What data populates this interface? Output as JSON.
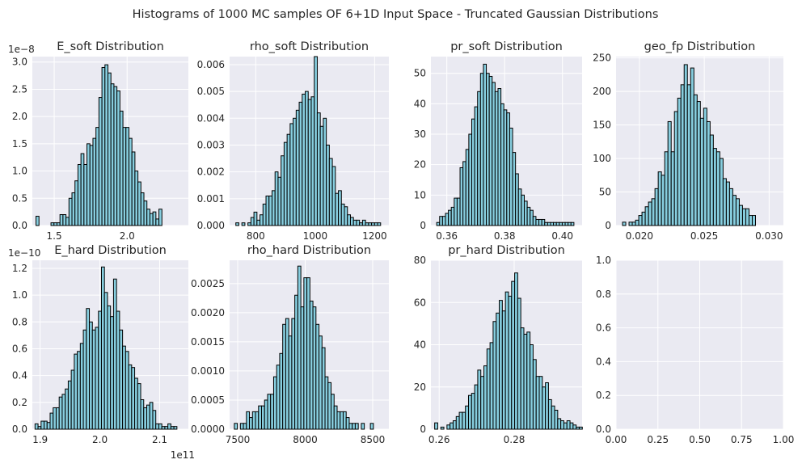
{
  "figure": {
    "title": "Histograms of 1000 MC samples OF 6+1D Input Space - Truncated Gaussian Distributions",
    "style": {
      "axes_bg": "#eaeaf2",
      "grid": "#ffffff",
      "bar_fill": "#87cedf",
      "bar_edge": "#000000",
      "text": "#262626"
    }
  },
  "chart_data": [
    {
      "type": "bar",
      "title": "E_soft Distribution",
      "x_offset_label": "",
      "y_offset_label": "1e−8",
      "xlim": [
        1.35,
        2.42
      ],
      "ylim": [
        0,
        3.1
      ],
      "xticks": [
        1.5,
        2.0
      ],
      "xtick_labels": [
        "1.5",
        "2.0"
      ],
      "yticks": [
        0.0,
        0.5,
        1.0,
        1.5,
        2.0,
        2.5,
        3.0
      ],
      "ytick_labels": [
        "0.0",
        "0.5",
        "1.0",
        "1.5",
        "2.0",
        "2.5",
        "3.0"
      ],
      "bin_start": 1.375,
      "bin_width": 0.02056,
      "values": [
        0.17,
        0,
        0,
        0,
        0,
        0.05,
        0.05,
        0.05,
        0.2,
        0.2,
        0.15,
        0.5,
        0.6,
        0.82,
        1.12,
        1.32,
        1.12,
        1.5,
        1.47,
        1.6,
        1.8,
        2.35,
        2.9,
        2.95,
        2.8,
        2.6,
        2.55,
        2.47,
        2.1,
        1.8,
        1.8,
        1.6,
        1.35,
        1.0,
        0.8,
        0.6,
        0.45,
        0.3,
        0.22,
        0.25,
        0.12,
        0.3
      ]
    },
    {
      "type": "bar",
      "title": "rho_soft Distribution",
      "x_offset_label": "",
      "y_offset_label": "",
      "xlim": [
        712,
        1248
      ],
      "ylim": [
        0,
        0.0063
      ],
      "xticks": [
        800,
        1000,
        1200
      ],
      "xtick_labels": [
        "800",
        "1000",
        "1200"
      ],
      "yticks": [
        0,
        0.001,
        0.002,
        0.003,
        0.004,
        0.005,
        0.006
      ],
      "ytick_labels": [
        "0.000",
        "0.001",
        "0.002",
        "0.003",
        "0.004",
        "0.005",
        "0.006"
      ],
      "bin_start": 733,
      "bin_width": 10.15,
      "values": [
        0.0001,
        0,
        0.0001,
        0,
        0.0001,
        0.0003,
        0.0005,
        0.0002,
        0.0004,
        0.0008,
        0.0011,
        0.0011,
        0.0013,
        0.002,
        0.0018,
        0.0026,
        0.0031,
        0.0034,
        0.0038,
        0.004,
        0.0043,
        0.0046,
        0.0049,
        0.005,
        0.0047,
        0.0048,
        0.0063,
        0.0042,
        0.0037,
        0.004,
        0.003,
        0.0025,
        0.0022,
        0.0012,
        0.0013,
        0.0008,
        0.0007,
        0.0004,
        0.0003,
        0.0002,
        0.0002,
        0.0001,
        0.0002,
        0.0001,
        0.0001,
        0.0001,
        0.0001,
        0.0001
      ]
    },
    {
      "type": "bar",
      "title": "pr_soft Distribution",
      "x_offset_label": "",
      "y_offset_label": "",
      "xlim": [
        0.3545,
        0.4068
      ],
      "ylim": [
        0,
        55.5
      ],
      "xticks": [
        0.36,
        0.38,
        0.4
      ],
      "xtick_labels": [
        "0.36",
        "0.38",
        "0.40"
      ],
      "yticks": [
        0,
        10,
        20,
        30,
        40,
        50
      ],
      "ytick_labels": [
        "0",
        "10",
        "20",
        "30",
        "40",
        "50"
      ],
      "bin_start": 0.3565,
      "bin_width": 0.00101,
      "values": [
        1,
        3,
        3,
        4,
        5,
        6,
        9,
        9,
        19,
        21,
        25,
        30,
        35,
        39,
        44,
        50,
        53,
        50,
        49,
        47,
        44,
        45,
        40,
        38,
        37,
        32,
        24,
        17,
        12,
        10,
        8,
        6,
        5,
        3,
        2,
        2,
        2,
        1,
        1,
        1,
        1,
        1,
        1,
        1,
        1,
        1,
        1
      ]
    },
    {
      "type": "bar",
      "title": "geo_fp Distribution",
      "x_offset_label": "",
      "y_offset_label": "",
      "xlim": [
        0.0182,
        0.0311
      ],
      "ylim": [
        0,
        252
      ],
      "xticks": [
        0.02,
        0.025,
        0.03
      ],
      "xtick_labels": [
        "0.020",
        "0.025",
        "0.030"
      ],
      "yticks": [
        0,
        50,
        100,
        150,
        200,
        250
      ],
      "ytick_labels": [
        "0",
        "50",
        "100",
        "150",
        "200",
        "250"
      ],
      "bin_start": 0.0187,
      "bin_width": 0.00025,
      "values": [
        5,
        0,
        5,
        5,
        8,
        15,
        20,
        28,
        35,
        40,
        55,
        80,
        75,
        110,
        155,
        110,
        170,
        190,
        210,
        240,
        210,
        235,
        195,
        185,
        160,
        175,
        155,
        135,
        115,
        110,
        100,
        70,
        65,
        55,
        45,
        40,
        30,
        25,
        25,
        15,
        15
      ]
    },
    {
      "type": "bar",
      "title": "E_hard Distribution",
      "x_offset_label": "1e11",
      "y_offset_label": "1e−10",
      "xlim": [
        1.887,
        2.148
      ],
      "ylim": [
        0,
        1.26
      ],
      "xticks": [
        1.9,
        2.0,
        2.1
      ],
      "xtick_labels": [
        "1.9",
        "2.0",
        "2.1"
      ],
      "yticks": [
        0,
        0.2,
        0.4,
        0.6,
        0.8,
        1.0,
        1.2
      ],
      "ytick_labels": [
        "0.0",
        "0.2",
        "0.4",
        "0.6",
        "0.8",
        "1.0",
        "1.2"
      ],
      "bin_start": 1.8915,
      "bin_width": 0.00505,
      "values": [
        0.04,
        0.02,
        0.06,
        0.06,
        0.05,
        0.12,
        0.16,
        0.16,
        0.24,
        0.26,
        0.3,
        0.36,
        0.44,
        0.56,
        0.58,
        0.64,
        0.74,
        0.9,
        0.8,
        0.74,
        0.76,
        0.88,
        1.21,
        1.02,
        0.92,
        0.84,
        1.12,
        0.88,
        0.74,
        0.62,
        0.58,
        0.48,
        0.46,
        0.38,
        0.34,
        0.22,
        0.16,
        0.18,
        0.2,
        0.14,
        0.04,
        0.04,
        0.02,
        0.02,
        0.04,
        0.02,
        0.02
      ]
    },
    {
      "type": "bar",
      "title": "rho_hard Distribution",
      "x_offset_label": "",
      "y_offset_label": "",
      "xlim": [
        7440,
        8620
      ],
      "ylim": [
        0,
        0.0029
      ],
      "xticks": [
        7500,
        8000,
        8500
      ],
      "xtick_labels": [
        "7500",
        "8000",
        "8500"
      ],
      "yticks": [
        0,
        0.0005,
        0.001,
        0.0015,
        0.002,
        0.0025
      ],
      "ytick_labels": [
        "0.0000",
        "0.0005",
        "0.0010",
        "0.0015",
        "0.0020",
        "0.0025"
      ],
      "bin_start": 7475,
      "bin_width": 22.4,
      "values": [
        0.0001,
        0,
        0.0001,
        0.0001,
        0.0003,
        0.0002,
        0.0003,
        0.0003,
        0.0004,
        0.0004,
        0.0005,
        0.0006,
        0.0006,
        0.0009,
        0.0011,
        0.0013,
        0.0018,
        0.0019,
        0.0016,
        0.0019,
        0.0023,
        0.0028,
        0.0021,
        0.0026,
        0.0026,
        0.0022,
        0.0021,
        0.0018,
        0.0016,
        0.0014,
        0.0009,
        0.0008,
        0.0006,
        0.0004,
        0.0003,
        0.0003,
        0.0003,
        0.0002,
        0.0001,
        0.0001,
        0.0001,
        0,
        0.0001,
        0,
        0,
        0.0001
      ]
    },
    {
      "type": "bar",
      "title": "pr_hard Distribution",
      "x_offset_label": "",
      "y_offset_label": "",
      "xlim": [
        0.2578,
        0.2981
      ],
      "ylim": [
        0,
        80
      ],
      "xticks": [
        0.26,
        0.28
      ],
      "xtick_labels": [
        "0.26",
        "0.28"
      ],
      "yticks": [
        0,
        20,
        40,
        60,
        80
      ],
      "ytick_labels": [
        "0",
        "20",
        "40",
        "60",
        "80"
      ],
      "bin_start": 0.2588,
      "bin_width": 0.00082,
      "values": [
        3,
        0,
        1,
        0,
        2,
        3,
        4,
        6,
        8,
        8,
        11,
        16,
        17,
        21,
        28,
        25,
        30,
        38,
        41,
        51,
        55,
        61,
        56,
        65,
        63,
        70,
        74,
        62,
        48,
        45,
        46,
        40,
        33,
        25,
        25,
        20,
        22,
        14,
        11,
        9,
        5,
        4,
        3,
        4,
        3,
        2,
        1,
        1
      ]
    },
    {
      "type": "bar",
      "title": "",
      "x_offset_label": "",
      "y_offset_label": "",
      "xlim": [
        0,
        1
      ],
      "ylim": [
        0,
        1
      ],
      "xticks": [
        0,
        0.25,
        0.5,
        0.75,
        1.0
      ],
      "xtick_labels": [
        "0.00",
        "0.25",
        "0.50",
        "0.75",
        "1.00"
      ],
      "yticks": [
        0,
        0.2,
        0.4,
        0.6,
        0.8,
        1.0
      ],
      "ytick_labels": [
        "0.0",
        "0.2",
        "0.4",
        "0.6",
        "0.8",
        "1.0"
      ],
      "bin_start": 0,
      "bin_width": 0,
      "values": []
    }
  ]
}
